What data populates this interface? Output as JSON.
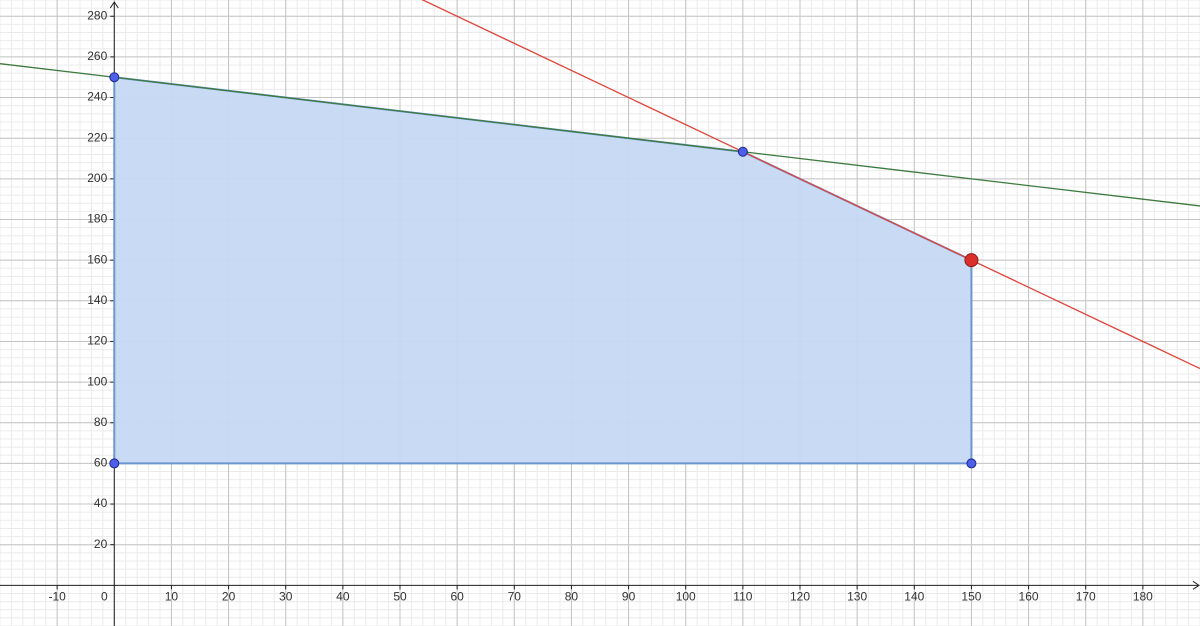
{
  "chart_data": {
    "type": "feasible-region",
    "xlim": [
      -20,
      190
    ],
    "ylim": [
      -20,
      288
    ],
    "xticks": [
      -10,
      0,
      10,
      20,
      30,
      40,
      50,
      60,
      70,
      80,
      90,
      100,
      110,
      120,
      130,
      140,
      150,
      160,
      170,
      180
    ],
    "yticks": [
      20,
      40,
      60,
      80,
      100,
      120,
      140,
      160,
      180,
      200,
      220,
      240,
      260,
      280
    ],
    "grid": true,
    "polygon": {
      "color": "#6b96cf",
      "fill": "#c5d8f3",
      "x": [
        0,
        110,
        150,
        150,
        0
      ],
      "y": [
        250,
        213.33,
        160,
        60,
        60
      ]
    },
    "lines": [
      {
        "color": "#3d7a3d",
        "x": [
          -20,
          190
        ],
        "values": [
          256.67,
          186.67
        ]
      },
      {
        "color": "#e0443a",
        "x": [
          53.5,
          190
        ],
        "values": [
          288.67,
          106.67
        ]
      }
    ],
    "points": [
      {
        "x": 0,
        "y": 250,
        "color": "#4d5ee8"
      },
      {
        "x": 110,
        "y": 213.33,
        "color": "#4d5ee8"
      },
      {
        "x": 150,
        "y": 160,
        "color": "#d9302c"
      },
      {
        "x": 150,
        "y": 60,
        "color": "#4d5ee8"
      },
      {
        "x": 0,
        "y": 60,
        "color": "#4d5ee8"
      }
    ]
  }
}
